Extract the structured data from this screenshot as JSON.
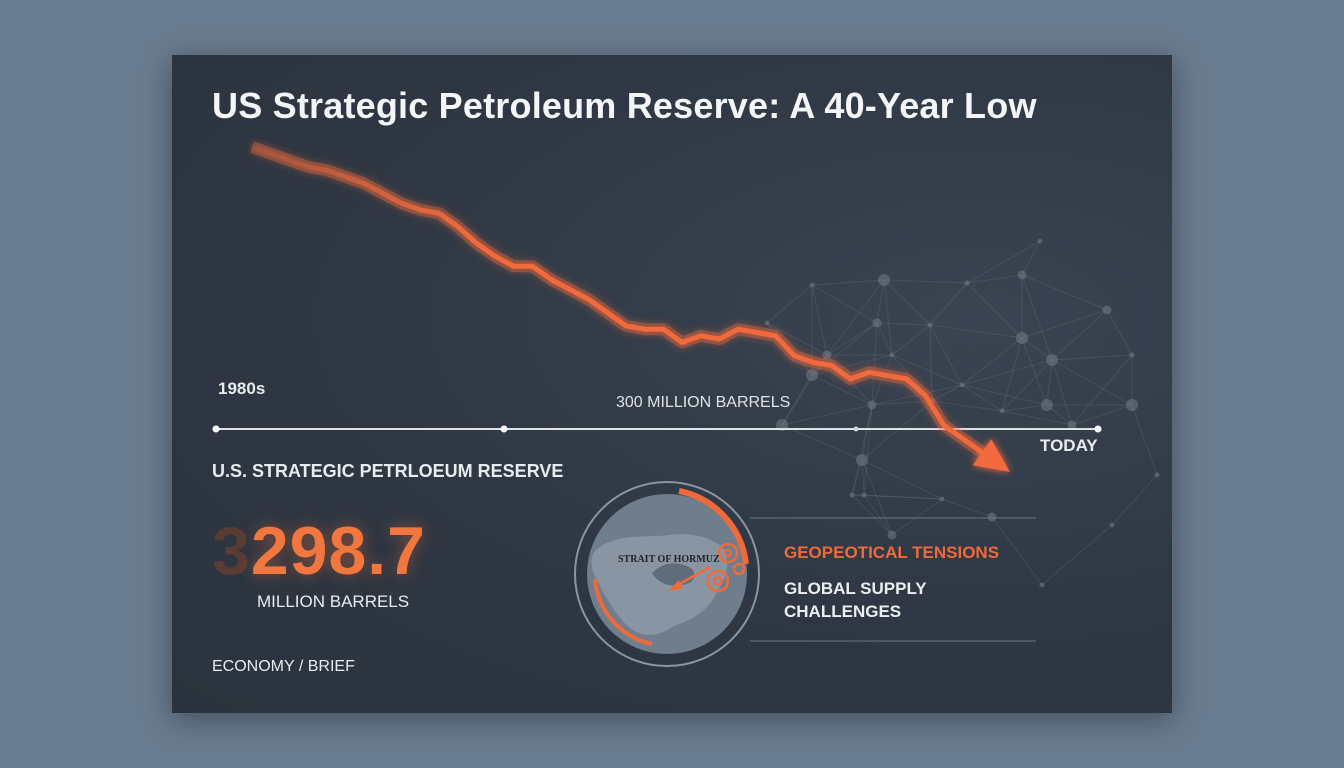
{
  "title": "US Strategic Petroleum Reserve: A 40-Year Low",
  "chart_data": {
    "type": "line",
    "title": "US Strategic Petroleum Reserve: A 40-Year Low",
    "series": [
      {
        "values": [
          100,
          98,
          96,
          94,
          93,
          91,
          89,
          86,
          83,
          81,
          80,
          76,
          71,
          67,
          64,
          64,
          60,
          57,
          54,
          50,
          46,
          45,
          45,
          41,
          43,
          42,
          45,
          44,
          43,
          37,
          35,
          34,
          30,
          32,
          31,
          30,
          25,
          16,
          12,
          8,
          4
        ]
      }
    ],
    "x_start_label": "1980s",
    "x_end_label": "TODAY",
    "reference_label": "300 MILLION BARRELS",
    "color": "#f26a3c"
  },
  "reserve": {
    "label": "U.S. STRATEGIC PETRLOEUM RESERVE",
    "value_ghost": "3",
    "value": "298.7",
    "unit": "MILLION BARRELS"
  },
  "map": {
    "label": "STRAIT OF HORMUZ",
    "headline": "GEOPEOTICAL TENSIONS",
    "detail_line1": "GLOBAL SUPPLY",
    "detail_line2": "CHALLENGES",
    "accent": "#ef6a3a"
  },
  "footer": "ECONOMY / BRIEF"
}
